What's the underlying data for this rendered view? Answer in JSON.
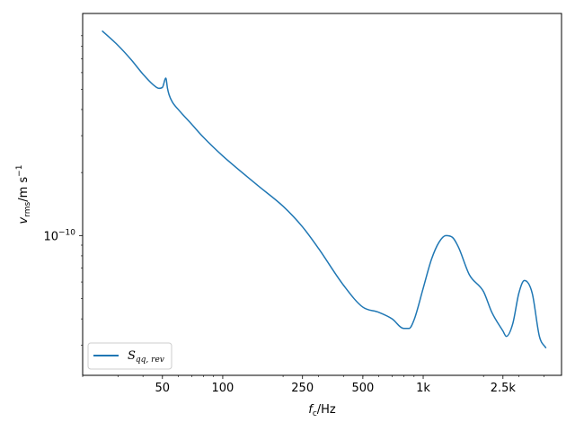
{
  "chart_data": {
    "type": "line",
    "title": "",
    "xlabel": {
      "main": "f",
      "sub": "c",
      "rest": "/Hz"
    },
    "ylabel": {
      "main": "v",
      "sub": "rms",
      "rest": "/m s",
      "sup": "−1"
    },
    "xscale": "log",
    "yscale": "log",
    "xlim": [
      20,
      4900
    ],
    "ylim": [
      2.15e-11,
      1.15e-09
    ],
    "xticks": [
      {
        "value": 50,
        "label": "50"
      },
      {
        "value": 100,
        "label": "100"
      },
      {
        "value": 250,
        "label": "250"
      },
      {
        "value": 500,
        "label": "500"
      },
      {
        "value": 1000,
        "label": "1k"
      },
      {
        "value": 2500,
        "label": "2.5k"
      }
    ],
    "yticks": [
      {
        "value": 1e-10,
        "base": "10",
        "exp": "−10"
      }
    ],
    "grid": false,
    "legend": {
      "position": "lower-left",
      "label": {
        "main": "S",
        "sub": "qq, rev"
      }
    },
    "series": [
      {
        "name": "S_qq,rev",
        "color": "#1f77b4",
        "x": [
          25,
          30,
          35,
          40,
          45,
          48,
          50,
          52,
          53,
          54,
          56,
          60,
          70,
          80,
          100,
          150,
          200,
          250,
          300,
          400,
          500,
          600,
          700,
          800,
          850,
          900,
          1000,
          1100,
          1200,
          1300,
          1400,
          1500,
          1700,
          2000,
          2200,
          2500,
          2600,
          2800,
          3000,
          3200,
          3500,
          3800,
          4100
        ],
        "y": [
          9.5e-10,
          8.1e-10,
          6.9e-10,
          5.9e-10,
          5.25e-10,
          5.05e-10,
          5.1e-10,
          5.65e-10,
          5.05e-10,
          4.7e-10,
          4.35e-10,
          4e-10,
          3.4e-10,
          2.95e-10,
          2.4e-10,
          1.73e-10,
          1.38e-10,
          1.1e-10,
          8.7e-11,
          5.8e-11,
          4.55e-11,
          4.3e-11,
          4e-11,
          3.6e-11,
          3.6e-11,
          3.95e-11,
          5.6e-11,
          7.7e-11,
          9.3e-11,
          1e-10,
          9.8e-11,
          8.8e-11,
          6.5e-11,
          5.4e-11,
          4.3e-11,
          3.5e-11,
          3.3e-11,
          3.8e-11,
          5.3e-11,
          6.1e-11,
          5.3e-11,
          3.3e-11,
          2.9e-11
        ]
      }
    ]
  }
}
